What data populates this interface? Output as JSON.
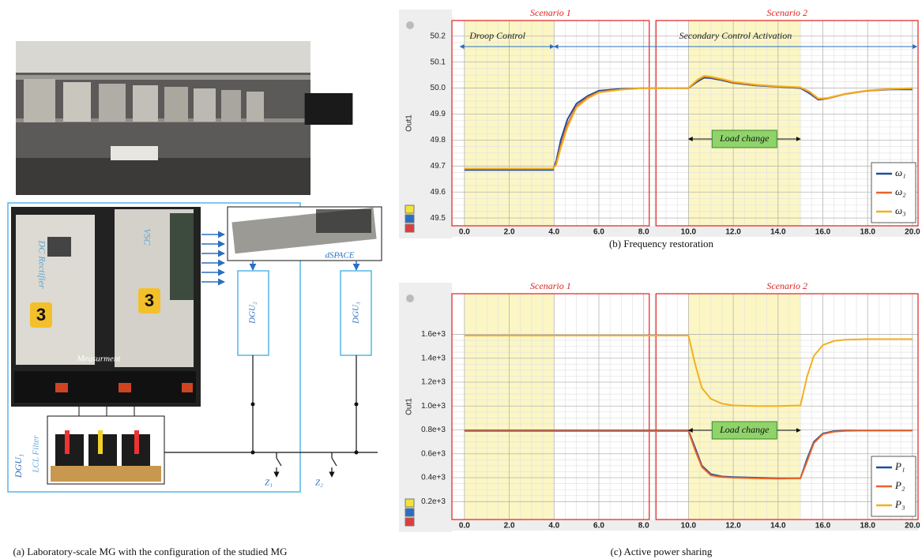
{
  "panel_a": {
    "caption": "(a) Laboratory-scale MG with the configuration of the studied MG",
    "labels": {
      "rectifier": "DC Rectifier",
      "vsc": "VSC",
      "measurement": "Measurment",
      "dspace": "dSPACE",
      "dgu2": "DGU₂",
      "dgu3": "DGU₃",
      "dgu1": "DGU₁",
      "lcl": "LCL Filter",
      "z1": "Z₁",
      "z2": "Z₂",
      "badge": "3"
    }
  },
  "chart_data": [
    {
      "type": "line",
      "title": "(b) Frequency restoration",
      "ylabel": "Out1",
      "xlim": [
        -0.56,
        20.25
      ],
      "ylim": [
        49.47,
        50.26
      ],
      "xticks": [
        {
          "value": 0,
          "label": "0.0"
        },
        {
          "value": 2,
          "label": "2.0"
        },
        {
          "value": 4,
          "label": "4.0"
        },
        {
          "value": 6,
          "label": "6.0"
        },
        {
          "value": 8,
          "label": "8.0"
        },
        {
          "value": 10,
          "label": "10.0"
        },
        {
          "value": 12,
          "label": "12.0"
        },
        {
          "value": 14,
          "label": "14.0"
        },
        {
          "value": 16,
          "label": "16.0"
        },
        {
          "value": 18,
          "label": "18.0"
        },
        {
          "value": 20,
          "label": "20.0"
        }
      ],
      "yticks": [
        49.5,
        49.6,
        49.7,
        49.8,
        49.9,
        {
          "value": 50,
          "label": "50.0"
        },
        50.1,
        50.2
      ],
      "grid": true,
      "legend": "lower right",
      "scenarios": [
        {
          "label": "Scenario 1",
          "x": [
            -0.56,
            8.25
          ]
        },
        {
          "label": "Scenario 2",
          "x": [
            8.55,
            20.25
          ]
        }
      ],
      "shaded": [
        [
          0,
          4
        ],
        [
          10,
          15
        ]
      ],
      "annotations": [
        {
          "text": "Droop Control",
          "x": [
            -0.2,
            4
          ]
        },
        {
          "text": "Secondary Control Activation",
          "x": [
            4,
            20.2
          ]
        },
        {
          "text": "Load change",
          "x": [
            10,
            15
          ]
        }
      ],
      "x": [
        0,
        1,
        2,
        3,
        3.95,
        4.1,
        4.3,
        4.6,
        5,
        5.5,
        6,
        7,
        8,
        9,
        10,
        10.4,
        10.7,
        11,
        11.5,
        12,
        13,
        14,
        15,
        15.4,
        15.8,
        16.2,
        17,
        18,
        19,
        20
      ],
      "series": [
        {
          "name": "ω₁",
          "color": "#1f4e9c",
          "values": [
            49.685,
            49.685,
            49.685,
            49.685,
            49.685,
            49.72,
            49.8,
            49.88,
            49.94,
            49.97,
            49.99,
            49.997,
            50.0,
            50.0,
            50.0,
            50.025,
            50.04,
            50.038,
            50.03,
            50.02,
            50.01,
            50.005,
            50.0,
            49.98,
            49.955,
            49.96,
            49.978,
            49.99,
            49.995,
            49.995
          ]
        },
        {
          "name": "ω₂",
          "color": "#e8632b",
          "values": [
            49.69,
            49.69,
            49.69,
            49.69,
            49.69,
            49.71,
            49.78,
            49.86,
            49.93,
            49.965,
            49.985,
            49.995,
            50.0,
            50.0,
            50.0,
            50.03,
            50.045,
            50.042,
            50.033,
            50.022,
            50.012,
            50.006,
            50.002,
            49.985,
            49.958,
            49.96,
            49.977,
            49.99,
            49.996,
            49.998
          ]
        },
        {
          "name": "ω₃",
          "color": "#f2b01e",
          "values": [
            49.69,
            49.69,
            49.69,
            49.69,
            49.69,
            49.705,
            49.77,
            49.85,
            49.925,
            49.96,
            49.983,
            49.994,
            50.0,
            50.0,
            50.001,
            50.032,
            50.047,
            50.044,
            50.035,
            50.024,
            50.013,
            50.007,
            50.003,
            49.987,
            49.96,
            49.962,
            49.978,
            49.991,
            49.997,
            50.0
          ]
        }
      ]
    },
    {
      "type": "line",
      "title": "(c) Active power sharing",
      "ylabel": "Out1",
      "xlim": [
        -0.56,
        20.25
      ],
      "ylim": [
        50,
        1940
      ],
      "xticks": [
        {
          "value": 0,
          "label": "0.0"
        },
        {
          "value": 2,
          "label": "2.0"
        },
        {
          "value": 4,
          "label": "4.0"
        },
        {
          "value": 6,
          "label": "6.0"
        },
        {
          "value": 8,
          "label": "8.0"
        },
        {
          "value": 10,
          "label": "10.0"
        },
        {
          "value": 12,
          "label": "12.0"
        },
        {
          "value": 14,
          "label": "14.0"
        },
        {
          "value": 16,
          "label": "16.0"
        },
        {
          "value": 18,
          "label": "18.0"
        },
        {
          "value": 20,
          "label": "20.0"
        }
      ],
      "yticks": [
        {
          "value": 200,
          "label": "0.2e+3"
        },
        {
          "value": 400,
          "label": "0.4e+3"
        },
        {
          "value": 600,
          "label": "0.6e+3"
        },
        {
          "value": 800,
          "label": "0.8e+3"
        },
        {
          "value": 1000,
          "label": "1.0e+3"
        },
        {
          "value": 1200,
          "label": "1.2e+3"
        },
        {
          "value": 1400,
          "label": "1.4e+3"
        },
        {
          "value": 1600,
          "label": "1.6e+3"
        }
      ],
      "grid": true,
      "legend": "lower right",
      "scenarios": [
        {
          "label": "Scenario 1",
          "x": [
            -0.56,
            8.25
          ]
        },
        {
          "label": "Scenario 2",
          "x": [
            8.55,
            20.25
          ]
        }
      ],
      "shaded": [
        [
          0,
          4
        ],
        [
          10,
          15
        ]
      ],
      "annotations": [
        {
          "text": "Load change",
          "x": [
            10,
            15
          ]
        }
      ],
      "x": [
        0,
        2,
        4,
        6,
        8,
        9,
        10,
        10.3,
        10.6,
        11,
        11.5,
        12,
        13,
        14,
        15,
        15.3,
        15.6,
        16,
        16.5,
        17,
        18,
        19,
        20
      ],
      "series": [
        {
          "name": "P₁",
          "color": "#1f4e9c",
          "values": [
            795,
            795,
            795,
            795,
            795,
            795,
            795,
            650,
            500,
            430,
            410,
            405,
            400,
            395,
            395,
            560,
            700,
            770,
            790,
            795,
            795,
            795,
            795
          ]
        },
        {
          "name": "P₂",
          "color": "#e8632b",
          "values": [
            790,
            790,
            790,
            790,
            790,
            790,
            790,
            630,
            490,
            420,
            405,
            400,
            395,
            392,
            395,
            540,
            690,
            765,
            785,
            792,
            795,
            795,
            795
          ]
        },
        {
          "name": "P₃",
          "color": "#f2b01e",
          "values": [
            1590,
            1590,
            1590,
            1590,
            1590,
            1590,
            1590,
            1350,
            1150,
            1060,
            1020,
            1005,
            1000,
            1000,
            1005,
            1250,
            1420,
            1510,
            1545,
            1555,
            1560,
            1560,
            1560
          ]
        }
      ]
    }
  ]
}
